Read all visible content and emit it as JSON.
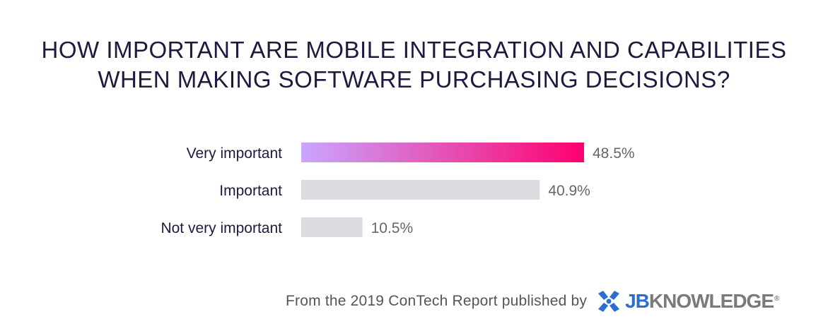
{
  "title": {
    "line1": "HOW IMPORTANT ARE MOBILE INTEGRATION AND CAPABILITIES",
    "line2": "WHEN MAKING SOFTWARE PURCHASING DECISIONS?"
  },
  "chart_data": {
    "type": "bar",
    "orientation": "horizontal",
    "categories": [
      "Very important",
      "Important",
      "Not very important"
    ],
    "values": [
      48.5,
      40.9,
      10.5
    ],
    "value_labels": [
      "48.5%",
      "40.9%",
      "10.5%"
    ],
    "title": "HOW IMPORTANT ARE MOBILE INTEGRATION AND CAPABILITIES WHEN MAKING SOFTWARE PURCHASING DECISIONS?",
    "xlabel": "",
    "ylabel": "",
    "grid": false,
    "highlight_index": 0,
    "colors": {
      "highlight_start": "#c9a6ff",
      "highlight_end": "#ff006e",
      "default_bar": "#dcdbe0",
      "category_text": "#1c1b3f",
      "value_text": "#666666"
    }
  },
  "footer": {
    "source_text": "From the 2019 ConTech Report published by",
    "logo": {
      "icon": "jbknowledge-logo-icon",
      "part1": "JB",
      "part2": "KNOWLEDGE",
      "registered": "®",
      "color_primary": "#2a6fd0",
      "color_secondary": "#7a7a7a"
    }
  }
}
